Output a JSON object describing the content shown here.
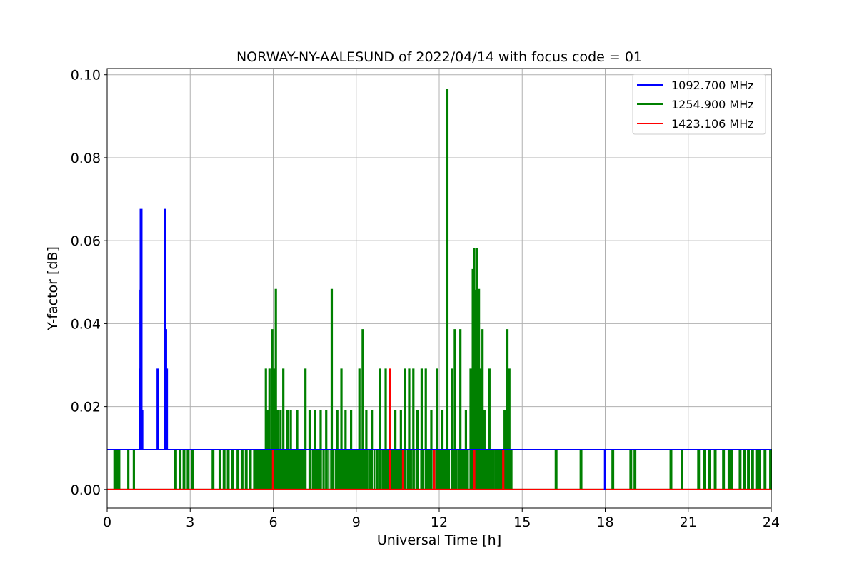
{
  "chart_data": {
    "type": "line",
    "title": "NORWAY-NY-AALESUND of 2022/04/14 with focus code = 01",
    "xlabel": "Universal Time [h]",
    "ylabel": "Y-factor [dB]",
    "xlim": [
      0,
      24
    ],
    "ylim": [
      -0.0045,
      0.1015
    ],
    "xticks": [
      0,
      3,
      6,
      9,
      12,
      15,
      18,
      21,
      24
    ],
    "xtick_labels": [
      "0",
      "3",
      "6",
      "9",
      "12",
      "15",
      "18",
      "21",
      "24"
    ],
    "yticks": [
      0.0,
      0.02,
      0.04,
      0.06,
      0.08,
      0.1
    ],
    "ytick_labels": [
      "0.00",
      "0.02",
      "0.04",
      "0.06",
      "0.08",
      "0.10"
    ],
    "grid": true,
    "legend_position": "top-right",
    "baseline": 0.0096,
    "series": [
      {
        "name": "1092.700 MHz",
        "color": "#0000ff",
        "baseline": 0.0096,
        "spikes": [
          {
            "x": 1.17,
            "y": 0.029
          },
          {
            "x": 1.19,
            "y": 0.048
          },
          {
            "x": 1.2,
            "y": 0.0675
          },
          {
            "x": 1.22,
            "y": 0.0675
          },
          {
            "x": 1.25,
            "y": 0.019
          },
          {
            "x": 1.81,
            "y": 0.029
          },
          {
            "x": 2.08,
            "y": 0.0675
          },
          {
            "x": 2.11,
            "y": 0.0385
          },
          {
            "x": 2.14,
            "y": 0.029
          }
        ],
        "dips": [
          {
            "x": 17.98,
            "y": 0.0
          }
        ]
      },
      {
        "name": "1254.900 MHz",
        "color": "#008000",
        "baseline": 0.0,
        "pulse_level": 0.0096,
        "segments": [
          [
            0.25,
            0.3
          ],
          [
            0.35,
            0.38
          ],
          [
            0.42,
            0.45
          ],
          [
            0.75,
            0.78
          ],
          [
            0.95,
            0.98
          ],
          [
            2.45,
            2.5
          ],
          [
            2.62,
            2.66
          ],
          [
            2.75,
            2.8
          ],
          [
            2.9,
            2.95
          ],
          [
            3.05,
            3.1
          ],
          [
            3.8,
            3.85
          ],
          [
            4.05,
            4.1
          ],
          [
            4.2,
            4.25
          ],
          [
            4.35,
            4.4
          ],
          [
            4.5,
            4.55
          ],
          [
            4.7,
            4.75
          ],
          [
            4.85,
            4.9
          ],
          [
            5.0,
            5.05
          ],
          [
            5.15,
            5.2
          ],
          [
            5.3,
            5.35
          ],
          [
            5.4,
            5.45
          ],
          [
            5.5,
            5.55
          ],
          [
            16.2,
            16.25
          ],
          [
            17.1,
            17.15
          ],
          [
            18.25,
            18.3
          ],
          [
            18.9,
            18.95
          ],
          [
            19.05,
            19.1
          ],
          [
            20.35,
            20.4
          ],
          [
            20.75,
            20.8
          ],
          [
            21.35,
            21.4
          ],
          [
            21.55,
            21.6
          ],
          [
            21.75,
            21.8
          ],
          [
            21.95,
            22.0
          ],
          [
            22.25,
            22.3
          ],
          [
            22.45,
            22.5
          ],
          [
            22.55,
            22.6
          ],
          [
            22.85,
            22.9
          ],
          [
            23.0,
            23.05
          ],
          [
            23.15,
            23.2
          ],
          [
            23.3,
            23.35
          ],
          [
            23.45,
            23.5
          ],
          [
            23.55,
            23.6
          ],
          [
            23.75,
            23.8
          ],
          [
            23.95,
            24.0
          ]
        ],
        "dense_range": [
          5.6,
          14.6
        ],
        "spikes": [
          {
            "x": 0.3,
            "y": 0.0096
          },
          {
            "x": 1.75,
            "y": 0.0
          },
          {
            "x": 5.72,
            "y": 0.029
          },
          {
            "x": 5.78,
            "y": 0.019
          },
          {
            "x": 5.85,
            "y": 0.029
          },
          {
            "x": 5.95,
            "y": 0.0385
          },
          {
            "x": 6.02,
            "y": 0.029
          },
          {
            "x": 6.08,
            "y": 0.0482
          },
          {
            "x": 6.15,
            "y": 0.019
          },
          {
            "x": 6.25,
            "y": 0.019
          },
          {
            "x": 6.35,
            "y": 0.029
          },
          {
            "x": 6.5,
            "y": 0.019
          },
          {
            "x": 6.62,
            "y": 0.019
          },
          {
            "x": 6.85,
            "y": 0.019
          },
          {
            "x": 7.15,
            "y": 0.029
          },
          {
            "x": 7.3,
            "y": 0.019
          },
          {
            "x": 7.5,
            "y": 0.019
          },
          {
            "x": 7.7,
            "y": 0.019
          },
          {
            "x": 7.9,
            "y": 0.019
          },
          {
            "x": 8.1,
            "y": 0.0482
          },
          {
            "x": 8.3,
            "y": 0.019
          },
          {
            "x": 8.45,
            "y": 0.029
          },
          {
            "x": 8.6,
            "y": 0.019
          },
          {
            "x": 8.8,
            "y": 0.019
          },
          {
            "x": 9.1,
            "y": 0.029
          },
          {
            "x": 9.22,
            "y": 0.0385
          },
          {
            "x": 9.35,
            "y": 0.019
          },
          {
            "x": 9.55,
            "y": 0.019
          },
          {
            "x": 9.85,
            "y": 0.029
          },
          {
            "x": 10.05,
            "y": 0.029
          },
          {
            "x": 10.4,
            "y": 0.019
          },
          {
            "x": 10.6,
            "y": 0.019
          },
          {
            "x": 10.75,
            "y": 0.029
          },
          {
            "x": 10.9,
            "y": 0.029
          },
          {
            "x": 11.05,
            "y": 0.029
          },
          {
            "x": 11.2,
            "y": 0.019
          },
          {
            "x": 11.35,
            "y": 0.029
          },
          {
            "x": 11.5,
            "y": 0.029
          },
          {
            "x": 11.7,
            "y": 0.019
          },
          {
            "x": 11.9,
            "y": 0.029
          },
          {
            "x": 12.1,
            "y": 0.019
          },
          {
            "x": 12.28,
            "y": 0.0965
          },
          {
            "x": 12.45,
            "y": 0.029
          },
          {
            "x": 12.55,
            "y": 0.0385
          },
          {
            "x": 12.75,
            "y": 0.0385
          },
          {
            "x": 12.95,
            "y": 0.019
          },
          {
            "x": 13.12,
            "y": 0.029
          },
          {
            "x": 13.2,
            "y": 0.053
          },
          {
            "x": 13.25,
            "y": 0.058
          },
          {
            "x": 13.3,
            "y": 0.048
          },
          {
            "x": 13.35,
            "y": 0.058
          },
          {
            "x": 13.42,
            "y": 0.0482
          },
          {
            "x": 13.48,
            "y": 0.029
          },
          {
            "x": 13.55,
            "y": 0.0385
          },
          {
            "x": 13.62,
            "y": 0.019
          },
          {
            "x": 13.8,
            "y": 0.029
          },
          {
            "x": 14.35,
            "y": 0.019
          },
          {
            "x": 14.45,
            "y": 0.0385
          },
          {
            "x": 14.52,
            "y": 0.029
          }
        ]
      },
      {
        "name": "1423.106 MHz",
        "color": "#ff0000",
        "baseline": 0.0,
        "spikes": [
          {
            "x": 5.98,
            "y": 0.0096
          },
          {
            "x": 10.2,
            "y": 0.029
          },
          {
            "x": 10.68,
            "y": 0.0096
          },
          {
            "x": 11.8,
            "y": 0.0096
          },
          {
            "x": 13.25,
            "y": 0.0096
          },
          {
            "x": 14.3,
            "y": 0.0096
          }
        ]
      }
    ]
  }
}
